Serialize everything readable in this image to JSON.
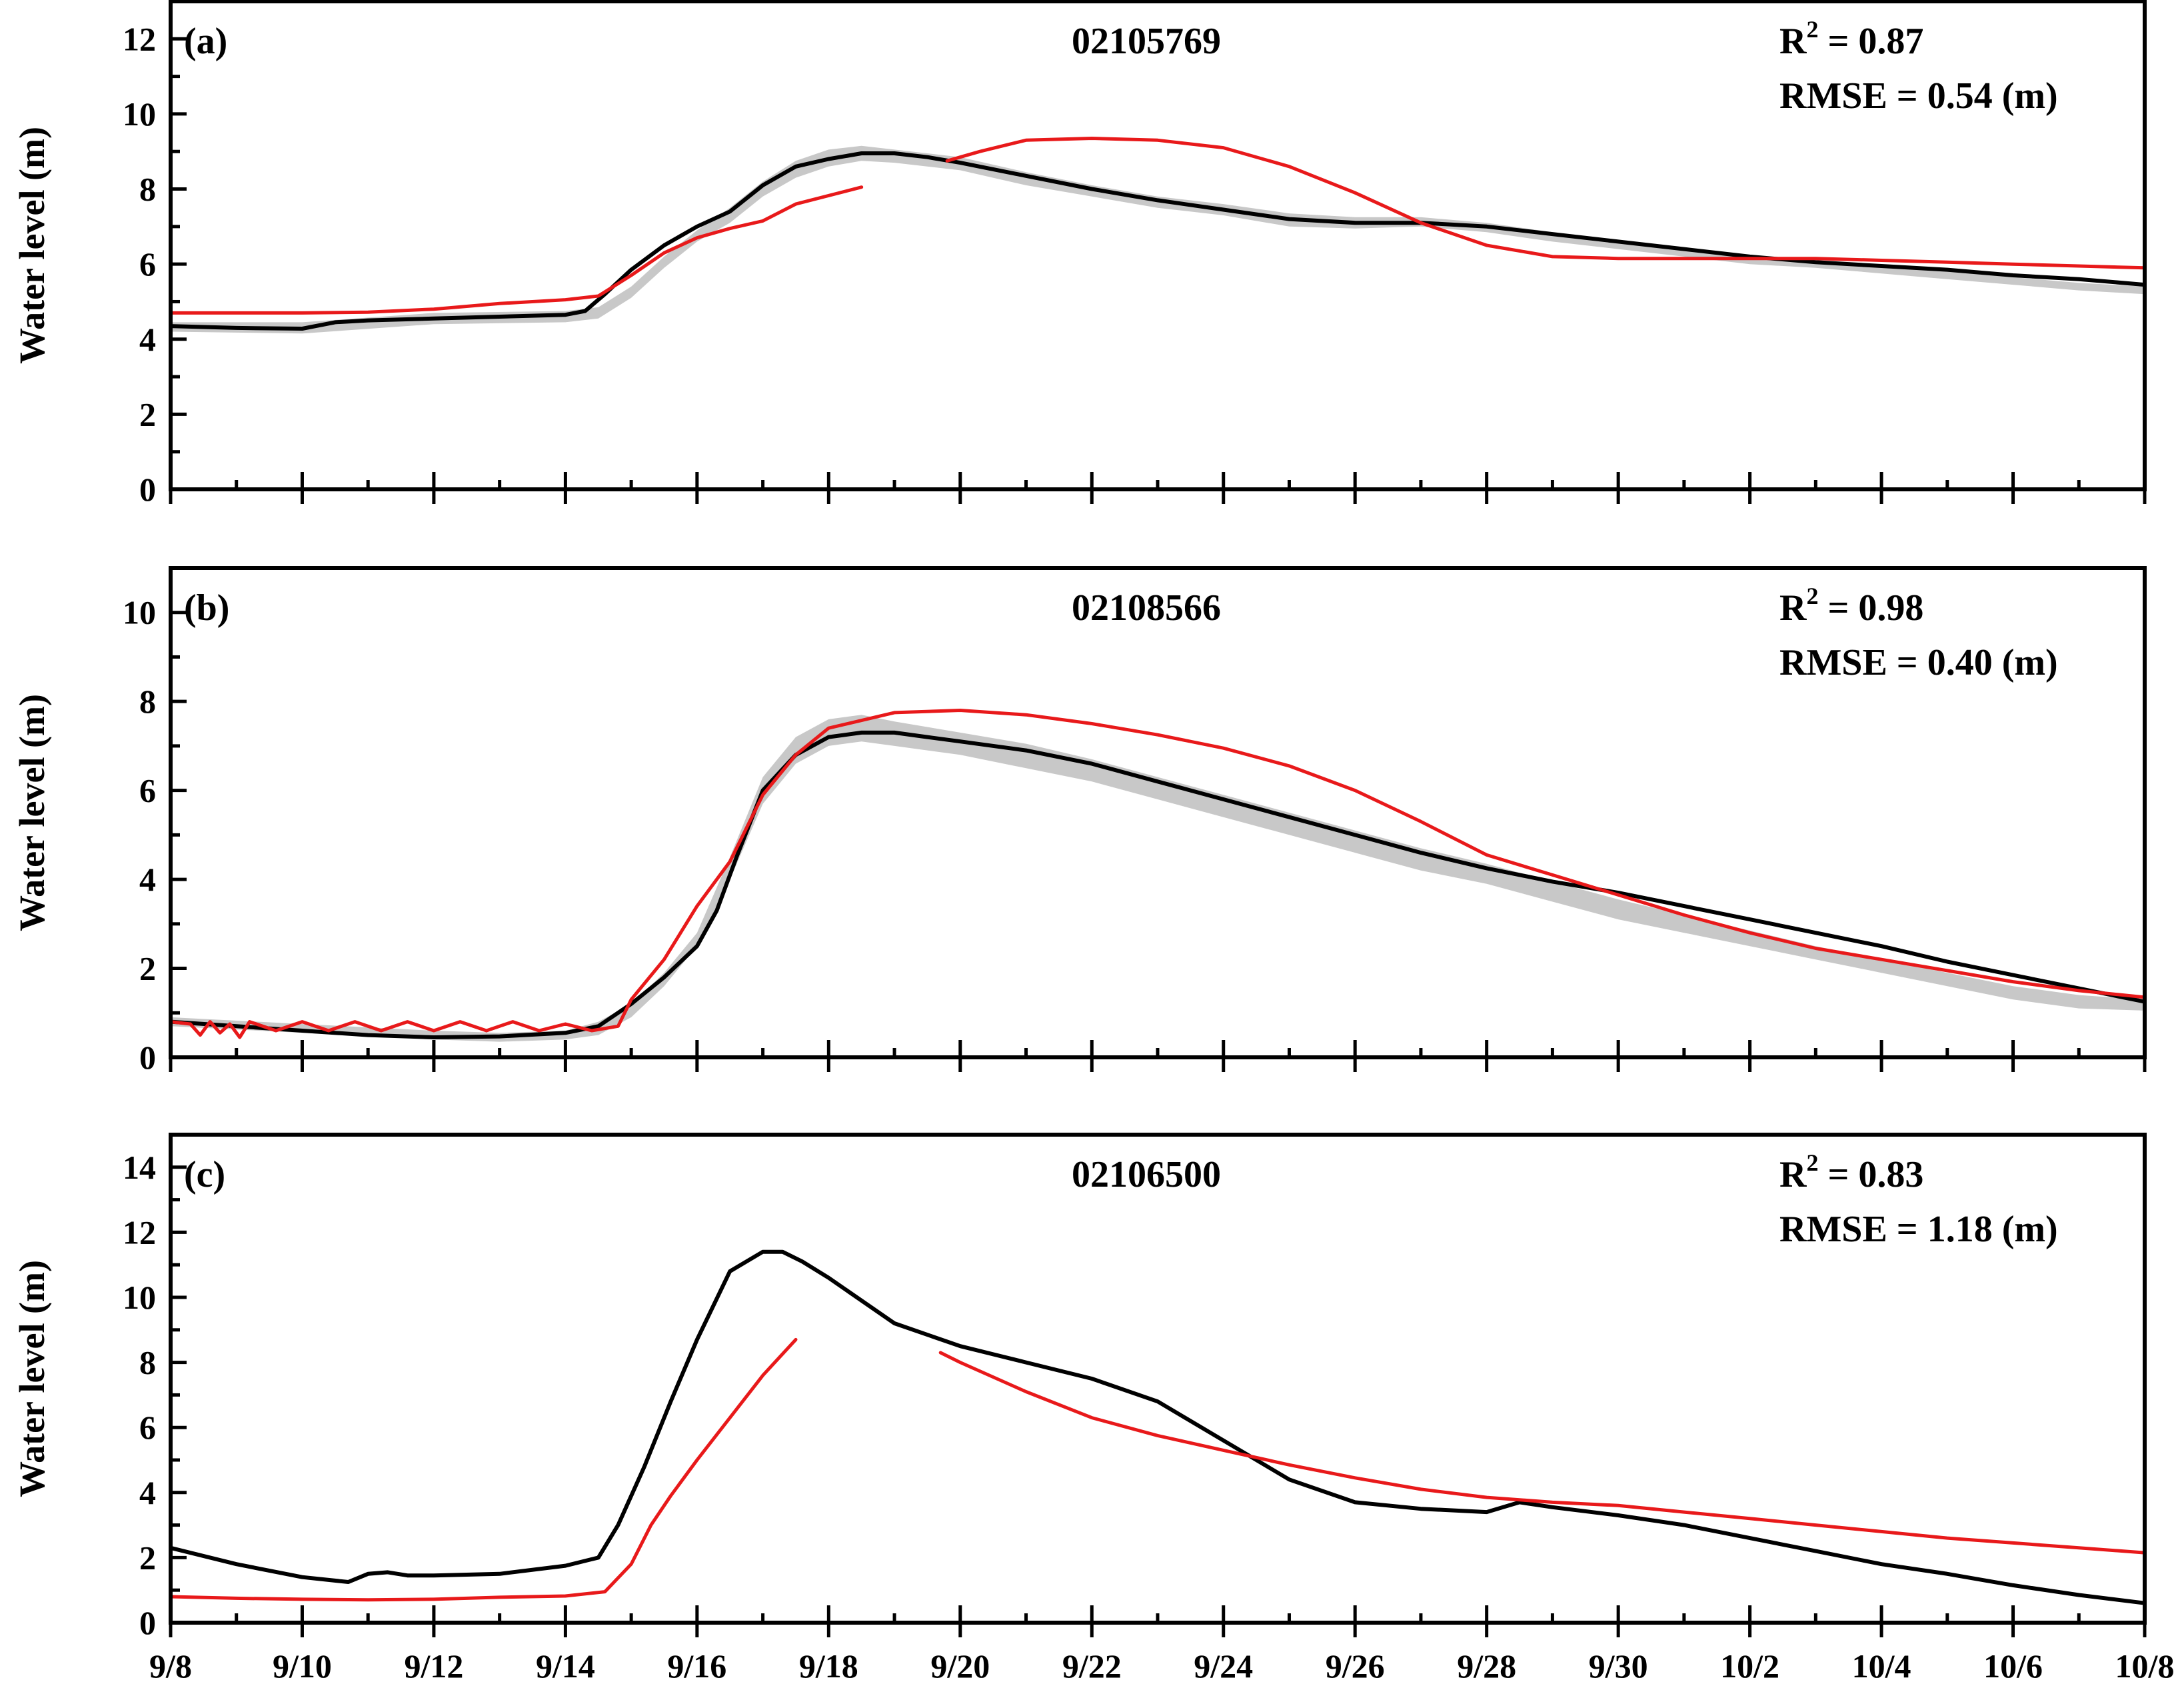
{
  "chart_data": [
    {
      "type": "line",
      "panel_label": "(a)",
      "station": "02105769",
      "r2_label": "R",
      "r2_sup": "2",
      "r2_value": " = 0.87",
      "rmse": "RMSE = 0.54 (m)",
      "ylabel": "Water level (m)",
      "xlabel": "",
      "ylim": [
        0,
        13
      ],
      "yticks": [
        0,
        2,
        4,
        6,
        8,
        10,
        12
      ],
      "ytick_labels": [
        "0",
        "2",
        "4",
        "6",
        "8",
        "10",
        "12"
      ],
      "xlim": [
        0,
        30
      ],
      "grid": false,
      "colors": {
        "observed": "#000000",
        "simulated": "#e8191a",
        "band": "#c8c8c8"
      },
      "band": {
        "x": [
          0,
          2,
          4,
          6,
          6.5,
          7,
          7.5,
          8,
          8.5,
          9,
          9.5,
          10,
          10.5,
          11,
          12,
          13,
          14,
          15,
          16,
          17,
          18,
          19,
          20,
          21,
          22,
          23,
          24,
          25,
          26,
          27,
          28,
          29,
          30
        ],
        "lower": [
          4.2,
          4.15,
          4.4,
          4.45,
          4.55,
          5.1,
          5.9,
          6.6,
          7.1,
          7.8,
          8.3,
          8.6,
          8.75,
          8.7,
          8.5,
          8.1,
          7.8,
          7.5,
          7.3,
          7.0,
          6.95,
          7.0,
          6.85,
          6.6,
          6.4,
          6.2,
          6.0,
          5.9,
          5.75,
          5.6,
          5.45,
          5.3,
          5.2
        ],
        "upper": [
          4.45,
          4.45,
          4.7,
          4.75,
          4.85,
          5.4,
          6.2,
          6.9,
          7.5,
          8.2,
          8.75,
          9.05,
          9.15,
          9.05,
          8.85,
          8.45,
          8.1,
          7.8,
          7.6,
          7.35,
          7.25,
          7.25,
          7.1,
          6.85,
          6.6,
          6.4,
          6.2,
          6.1,
          5.95,
          5.8,
          5.65,
          5.5,
          5.4
        ]
      },
      "series": [
        {
          "x": [
            0,
            1,
            2,
            2.5,
            3,
            4,
            5,
            6,
            6.3,
            6.6,
            7,
            7.5,
            8,
            8.5,
            9,
            9.5,
            10,
            10.5,
            11,
            11.5,
            12,
            13,
            14,
            15,
            16,
            17,
            18,
            19,
            20,
            21,
            22,
            23,
            24,
            25,
            26,
            27,
            28,
            29,
            30
          ],
          "y": [
            4.35,
            4.3,
            4.28,
            4.45,
            4.5,
            4.55,
            4.6,
            4.65,
            4.75,
            5.2,
            5.85,
            6.5,
            7.0,
            7.4,
            8.1,
            8.6,
            8.8,
            8.95,
            8.95,
            8.85,
            8.7,
            8.35,
            8.0,
            7.7,
            7.45,
            7.2,
            7.1,
            7.1,
            7.0,
            6.8,
            6.6,
            6.4,
            6.2,
            6.05,
            5.95,
            5.85,
            5.7,
            5.6,
            5.45
          ]
        },
        {
          "x": [
            0,
            1,
            2,
            3,
            4,
            5,
            6,
            6.5,
            7,
            7.5,
            8,
            8.5,
            9,
            9.5,
            10.5
          ],
          "y": [
            4.7,
            4.7,
            4.7,
            4.72,
            4.8,
            4.95,
            5.05,
            5.15,
            5.7,
            6.3,
            6.7,
            6.95,
            7.15,
            7.6,
            8.05
          ]
        },
        {
          "x": [
            11.8,
            12.3,
            13,
            14,
            15,
            16,
            17,
            18,
            19,
            20,
            21,
            22,
            23,
            24,
            25,
            26,
            27,
            28,
            29,
            30
          ],
          "y": [
            8.75,
            9.0,
            9.3,
            9.35,
            9.3,
            9.1,
            8.6,
            7.9,
            7.1,
            6.5,
            6.2,
            6.15,
            6.15,
            6.15,
            6.15,
            6.1,
            6.05,
            6.0,
            5.95,
            5.9
          ]
        }
      ]
    },
    {
      "type": "line",
      "panel_label": "(b)",
      "station": "02108566",
      "r2_label": "R",
      "r2_sup": "2",
      "r2_value": " = 0.98",
      "rmse": "RMSE = 0.40 (m)",
      "ylabel": "Water level (m)",
      "xlabel": "",
      "ylim": [
        0,
        11
      ],
      "yticks": [
        0,
        2,
        4,
        6,
        8,
        10
      ],
      "ytick_labels": [
        "0",
        "2",
        "4",
        "6",
        "8",
        "10"
      ],
      "xlim": [
        0,
        30
      ],
      "grid": false,
      "colors": {
        "observed": "#000000",
        "simulated": "#e8191a",
        "band": "#c8c8c8"
      },
      "band": {
        "x": [
          0,
          2,
          4,
          5,
          6,
          6.5,
          7,
          7.5,
          8,
          8.5,
          9,
          9.5,
          10,
          10.5,
          11,
          12,
          13,
          14,
          15,
          16,
          17,
          18,
          19,
          20,
          21,
          22,
          23,
          24,
          25,
          26,
          27,
          28,
          29,
          30
        ],
        "lower": [
          0.7,
          0.55,
          0.4,
          0.35,
          0.4,
          0.5,
          0.9,
          1.6,
          2.5,
          4.0,
          5.7,
          6.6,
          7.0,
          7.1,
          7.0,
          6.8,
          6.5,
          6.2,
          5.8,
          5.4,
          5.0,
          4.6,
          4.2,
          3.9,
          3.5,
          3.1,
          2.8,
          2.5,
          2.2,
          1.9,
          1.6,
          1.3,
          1.1,
          1.05
        ],
        "upper": [
          0.9,
          0.75,
          0.6,
          0.55,
          0.6,
          0.8,
          1.2,
          1.9,
          2.8,
          4.5,
          6.3,
          7.2,
          7.6,
          7.7,
          7.55,
          7.3,
          7.05,
          6.7,
          6.3,
          5.9,
          5.5,
          5.1,
          4.7,
          4.35,
          3.95,
          3.55,
          3.2,
          2.85,
          2.5,
          2.2,
          1.9,
          1.6,
          1.4,
          1.3
        ]
      },
      "series": [
        {
          "x": [
            0,
            1,
            2,
            3,
            4,
            5,
            6,
            6.5,
            7,
            7.5,
            8,
            8.3,
            8.6,
            9,
            9.5,
            10,
            10.5,
            11,
            11.5,
            12,
            13,
            14,
            15,
            16,
            17,
            18,
            19,
            20,
            21,
            22,
            23,
            24,
            25,
            26,
            27,
            28,
            29,
            30
          ],
          "y": [
            0.8,
            0.7,
            0.6,
            0.5,
            0.45,
            0.47,
            0.55,
            0.7,
            1.2,
            1.8,
            2.5,
            3.3,
            4.5,
            6.0,
            6.8,
            7.2,
            7.3,
            7.3,
            7.2,
            7.1,
            6.9,
            6.6,
            6.2,
            5.8,
            5.4,
            5.0,
            4.6,
            4.25,
            3.95,
            3.7,
            3.4,
            3.1,
            2.8,
            2.5,
            2.15,
            1.85,
            1.55,
            1.25
          ]
        },
        {
          "x": [
            0,
            0.3,
            0.45,
            0.6,
            0.75,
            0.9,
            1.05,
            1.2,
            1.6,
            2.0,
            2.4,
            2.8,
            3.2,
            3.6,
            4.0,
            4.4,
            4.8,
            5.2,
            5.6,
            6.0,
            6.4,
            6.8,
            7.0,
            7.5,
            8.0,
            8.5,
            9.0,
            9.5,
            10,
            11,
            12,
            13,
            14,
            15,
            16,
            17,
            18,
            19,
            20,
            21,
            22,
            23,
            24,
            25,
            26,
            27,
            28,
            29,
            30
          ],
          "y": [
            0.8,
            0.75,
            0.5,
            0.8,
            0.55,
            0.75,
            0.45,
            0.8,
            0.6,
            0.8,
            0.6,
            0.8,
            0.6,
            0.8,
            0.6,
            0.8,
            0.6,
            0.8,
            0.6,
            0.75,
            0.6,
            0.7,
            1.3,
            2.2,
            3.4,
            4.4,
            5.9,
            6.8,
            7.4,
            7.75,
            7.8,
            7.7,
            7.5,
            7.25,
            6.95,
            6.55,
            6.0,
            5.3,
            4.55,
            4.1,
            3.65,
            3.2,
            2.8,
            2.45,
            2.2,
            1.95,
            1.7,
            1.5,
            1.35
          ]
        }
      ]
    },
    {
      "type": "line",
      "panel_label": "(c)",
      "station": "02106500",
      "r2_label": "R",
      "r2_sup": "2",
      "r2_value": " = 0.83",
      "rmse": "RMSE = 1.18 (m)",
      "ylabel": "Water level (m)",
      "xlabel": "",
      "ylim": [
        0,
        15
      ],
      "yticks": [
        0,
        2,
        4,
        6,
        8,
        10,
        12,
        14
      ],
      "ytick_labels": [
        "0",
        "2",
        "4",
        "6",
        "8",
        "10",
        "12",
        "14"
      ],
      "xlim": [
        0,
        30
      ],
      "xtick_labels": [
        "9/8",
        "9/10",
        "9/12",
        "9/14",
        "9/16",
        "9/18",
        "9/20",
        "9/22",
        "9/24",
        "9/26",
        "9/28",
        "9/30",
        "10/2",
        "10/4",
        "10/6",
        "10/8"
      ],
      "grid": false,
      "colors": {
        "observed": "#000000",
        "simulated": "#e8191a"
      },
      "series": [
        {
          "x": [
            0,
            1,
            2,
            2.7,
            3.0,
            3.3,
            3.6,
            4,
            5,
            6,
            6.5,
            6.8,
            7.2,
            7.6,
            8.0,
            8.5,
            9.0,
            9.3,
            9.6,
            10,
            10.5,
            11,
            12,
            13,
            14,
            15,
            16,
            17,
            18,
            19,
            20,
            20.5,
            21,
            22,
            23,
            24,
            25,
            26,
            27,
            28,
            29,
            30
          ],
          "y": [
            2.3,
            1.8,
            1.4,
            1.25,
            1.5,
            1.55,
            1.45,
            1.45,
            1.5,
            1.75,
            2.0,
            3.0,
            4.8,
            6.8,
            8.7,
            10.8,
            11.4,
            11.4,
            11.1,
            10.6,
            9.9,
            9.2,
            8.5,
            8.0,
            7.5,
            6.8,
            5.6,
            4.4,
            3.7,
            3.5,
            3.4,
            3.7,
            3.55,
            3.3,
            3.0,
            2.6,
            2.2,
            1.8,
            1.5,
            1.15,
            0.85,
            0.6
          ]
        },
        {
          "x": [
            0,
            1,
            2,
            3,
            4,
            5,
            6,
            6.6,
            7.0,
            7.3,
            7.6,
            8.0,
            8.5,
            9.0,
            9.5
          ],
          "y": [
            0.8,
            0.75,
            0.72,
            0.7,
            0.72,
            0.78,
            0.82,
            0.95,
            1.8,
            3.0,
            3.9,
            5.0,
            6.3,
            7.6,
            8.7
          ]
        },
        {
          "x": [
            11.7,
            12,
            13,
            14,
            15,
            16,
            17,
            18,
            19,
            20,
            21,
            22,
            23,
            24,
            25,
            26,
            27,
            28,
            29,
            30
          ],
          "y": [
            8.3,
            8.0,
            7.1,
            6.3,
            5.75,
            5.3,
            4.85,
            4.45,
            4.1,
            3.85,
            3.7,
            3.6,
            3.4,
            3.2,
            3.0,
            2.8,
            2.6,
            2.45,
            2.3,
            2.15
          ]
        }
      ]
    }
  ]
}
